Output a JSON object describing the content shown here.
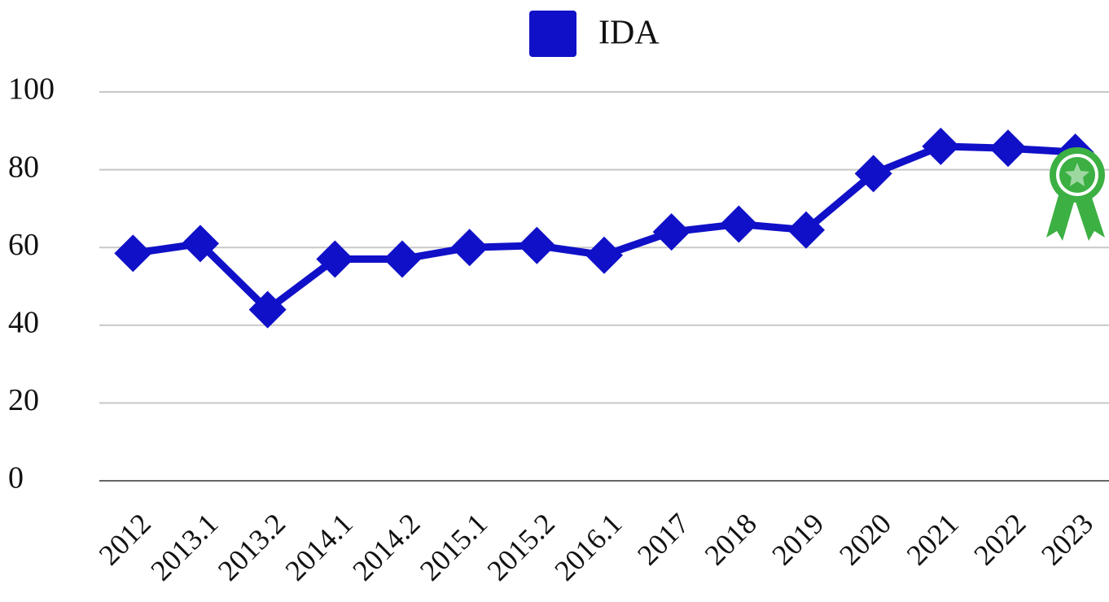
{
  "chart_data": {
    "type": "line",
    "categories": [
      "2012",
      "2013.1",
      "2013.2",
      "2014.1",
      "2014.2",
      "2015.1",
      "2015.2",
      "2016.1",
      "2017",
      "2018",
      "2019",
      "2020",
      "2021",
      "2022",
      "2023"
    ],
    "series": [
      {
        "name": "IDA",
        "color": "#1010c8",
        "values": [
          58.5,
          61,
          44,
          57,
          57,
          60,
          60.5,
          58,
          64,
          66,
          64.5,
          79,
          86,
          85.5,
          84.5
        ]
      }
    ],
    "ylim": [
      0,
      100
    ],
    "yticks": [
      0,
      20,
      40,
      60,
      80,
      100
    ],
    "grid": true,
    "legend": "top"
  }
}
